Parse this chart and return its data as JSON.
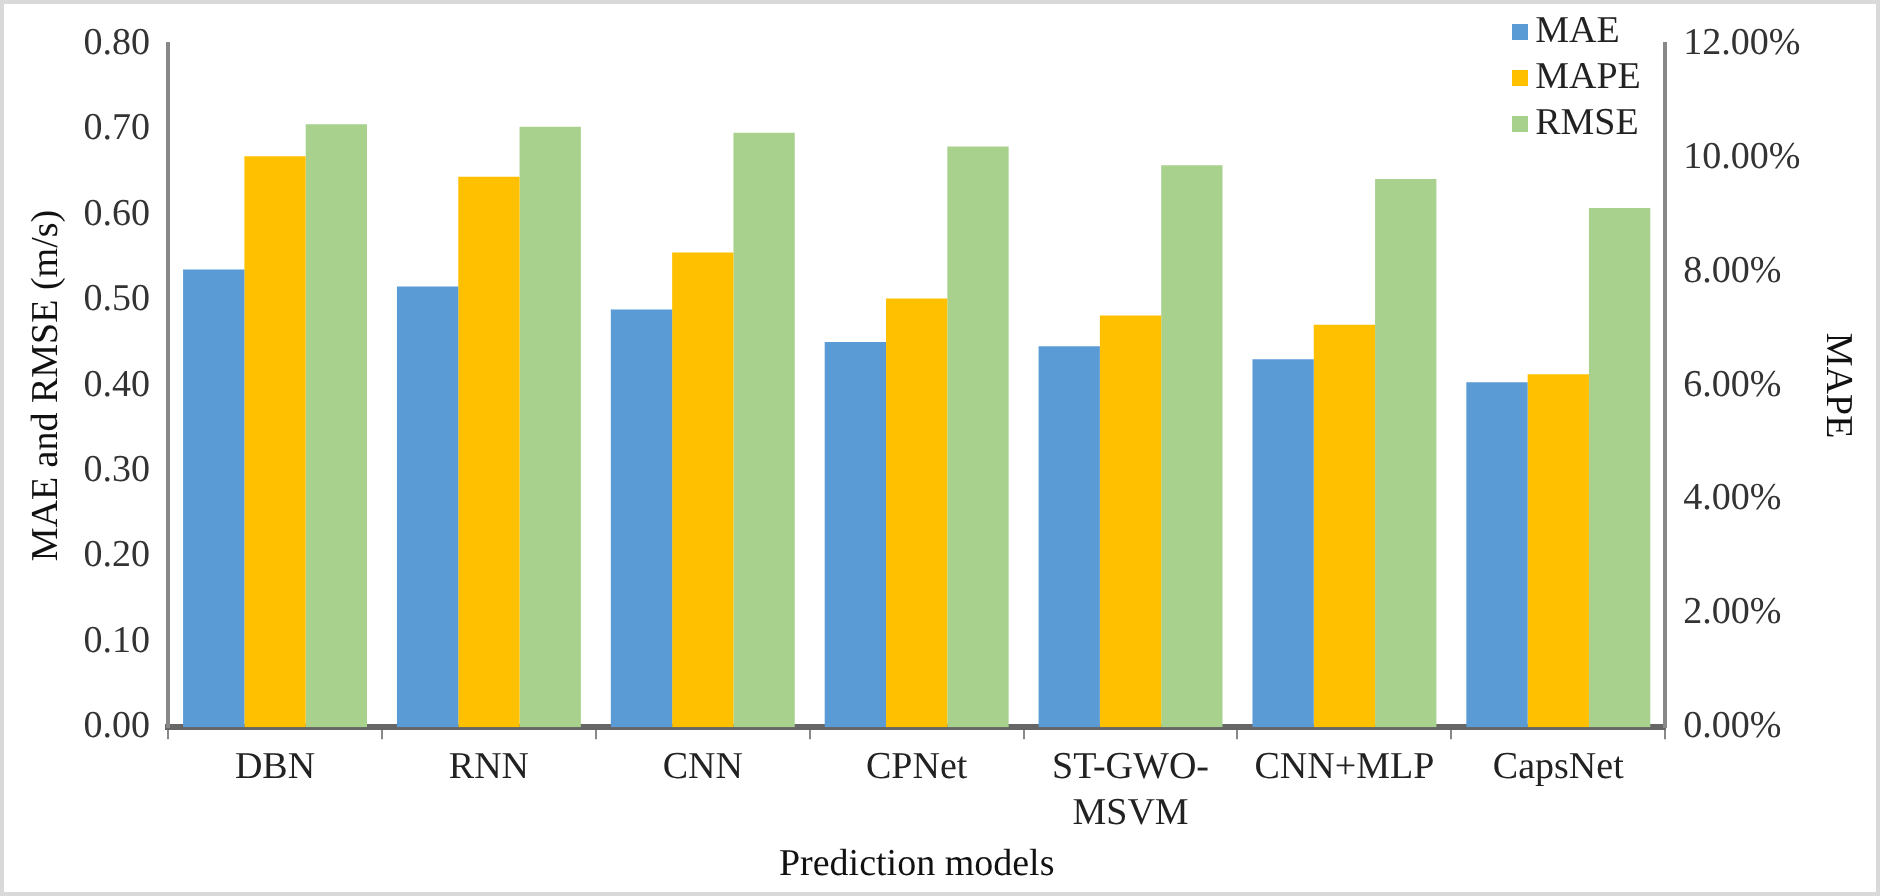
{
  "chart_data": {
    "type": "bar",
    "xlabel": "Prediction models",
    "ylabel": "MAE and RMSE (m/s)",
    "y2label": "MAPE",
    "categories": [
      "DBN",
      "RNN",
      "CNN",
      "CPNet",
      "ST-GWO-MSVM",
      "CNN+MLP",
      "CapsNet"
    ],
    "series": [
      {
        "name": "MAE",
        "color": "#5b9bd5",
        "values": [
          0.536,
          0.516,
          0.489,
          0.451,
          0.446,
          0.431,
          0.404
        ]
      },
      {
        "name": "MAPE",
        "color": "#ffc000",
        "axis": "y2",
        "values": [
          10.03,
          9.67,
          8.34,
          7.53,
          7.23,
          7.07,
          6.2
        ]
      },
      {
        "name": "RMSE",
        "color": "#a9d18e",
        "values": [
          0.706,
          0.703,
          0.696,
          0.68,
          0.658,
          0.642,
          0.608
        ]
      }
    ],
    "ylim": [
      0,
      0.8
    ],
    "yticks": [
      {
        "value": 0,
        "label": "0.00"
      },
      {
        "value": 0.1,
        "label": "0.10"
      },
      {
        "value": 0.2,
        "label": "0.20"
      },
      {
        "value": 0.3,
        "label": "0.30"
      },
      {
        "value": 0.4,
        "label": "0.40"
      },
      {
        "value": 0.5,
        "label": "0.50"
      },
      {
        "value": 0.6,
        "label": "0.60"
      },
      {
        "value": 0.7,
        "label": "0.70"
      },
      {
        "value": 0.8,
        "label": "0.80"
      }
    ],
    "y2lim": [
      0,
      12
    ],
    "y2ticks": [
      {
        "value": 0,
        "label": "0.00%"
      },
      {
        "value": 2,
        "label": "2.00%"
      },
      {
        "value": 4,
        "label": "4.00%"
      },
      {
        "value": 6,
        "label": "6.00%"
      },
      {
        "value": 8,
        "label": "8.00%"
      },
      {
        "value": 10,
        "label": "10.00%"
      },
      {
        "value": 12,
        "label": "12.00%"
      }
    ],
    "grid": false,
    "legend": "top right"
  }
}
